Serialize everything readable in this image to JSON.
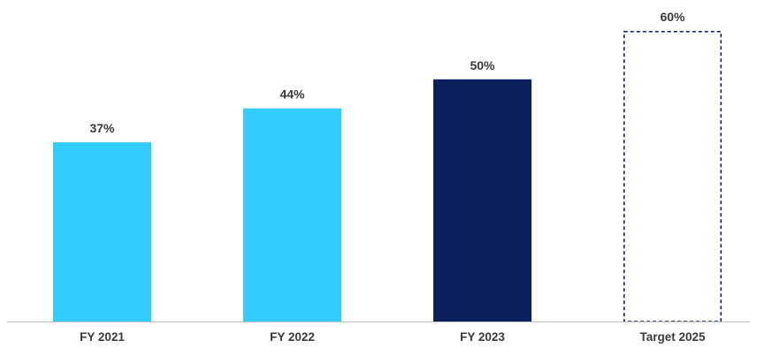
{
  "chart_data": {
    "type": "bar",
    "categories": [
      "FY 2021",
      "FY 2022",
      "FY 2023",
      "Target 2025"
    ],
    "values": [
      37,
      44,
      50,
      60
    ],
    "value_labels": [
      "37%",
      "44%",
      "50%",
      "60%"
    ],
    "unit": "%",
    "ylim": [
      0,
      62
    ],
    "grid": false,
    "legend": "none",
    "bar_styles": [
      "filled",
      "filled",
      "filled",
      "dashed-outline"
    ],
    "colors": [
      "#33ccff",
      "#33ccff",
      "#0a1f5c",
      "#0a1f5c"
    ]
  },
  "colors": {
    "axis": "#bfbfbf",
    "label_text": "#3a3a3a",
    "light_blue": "#33ccff",
    "navy": "#0a1f5c"
  }
}
